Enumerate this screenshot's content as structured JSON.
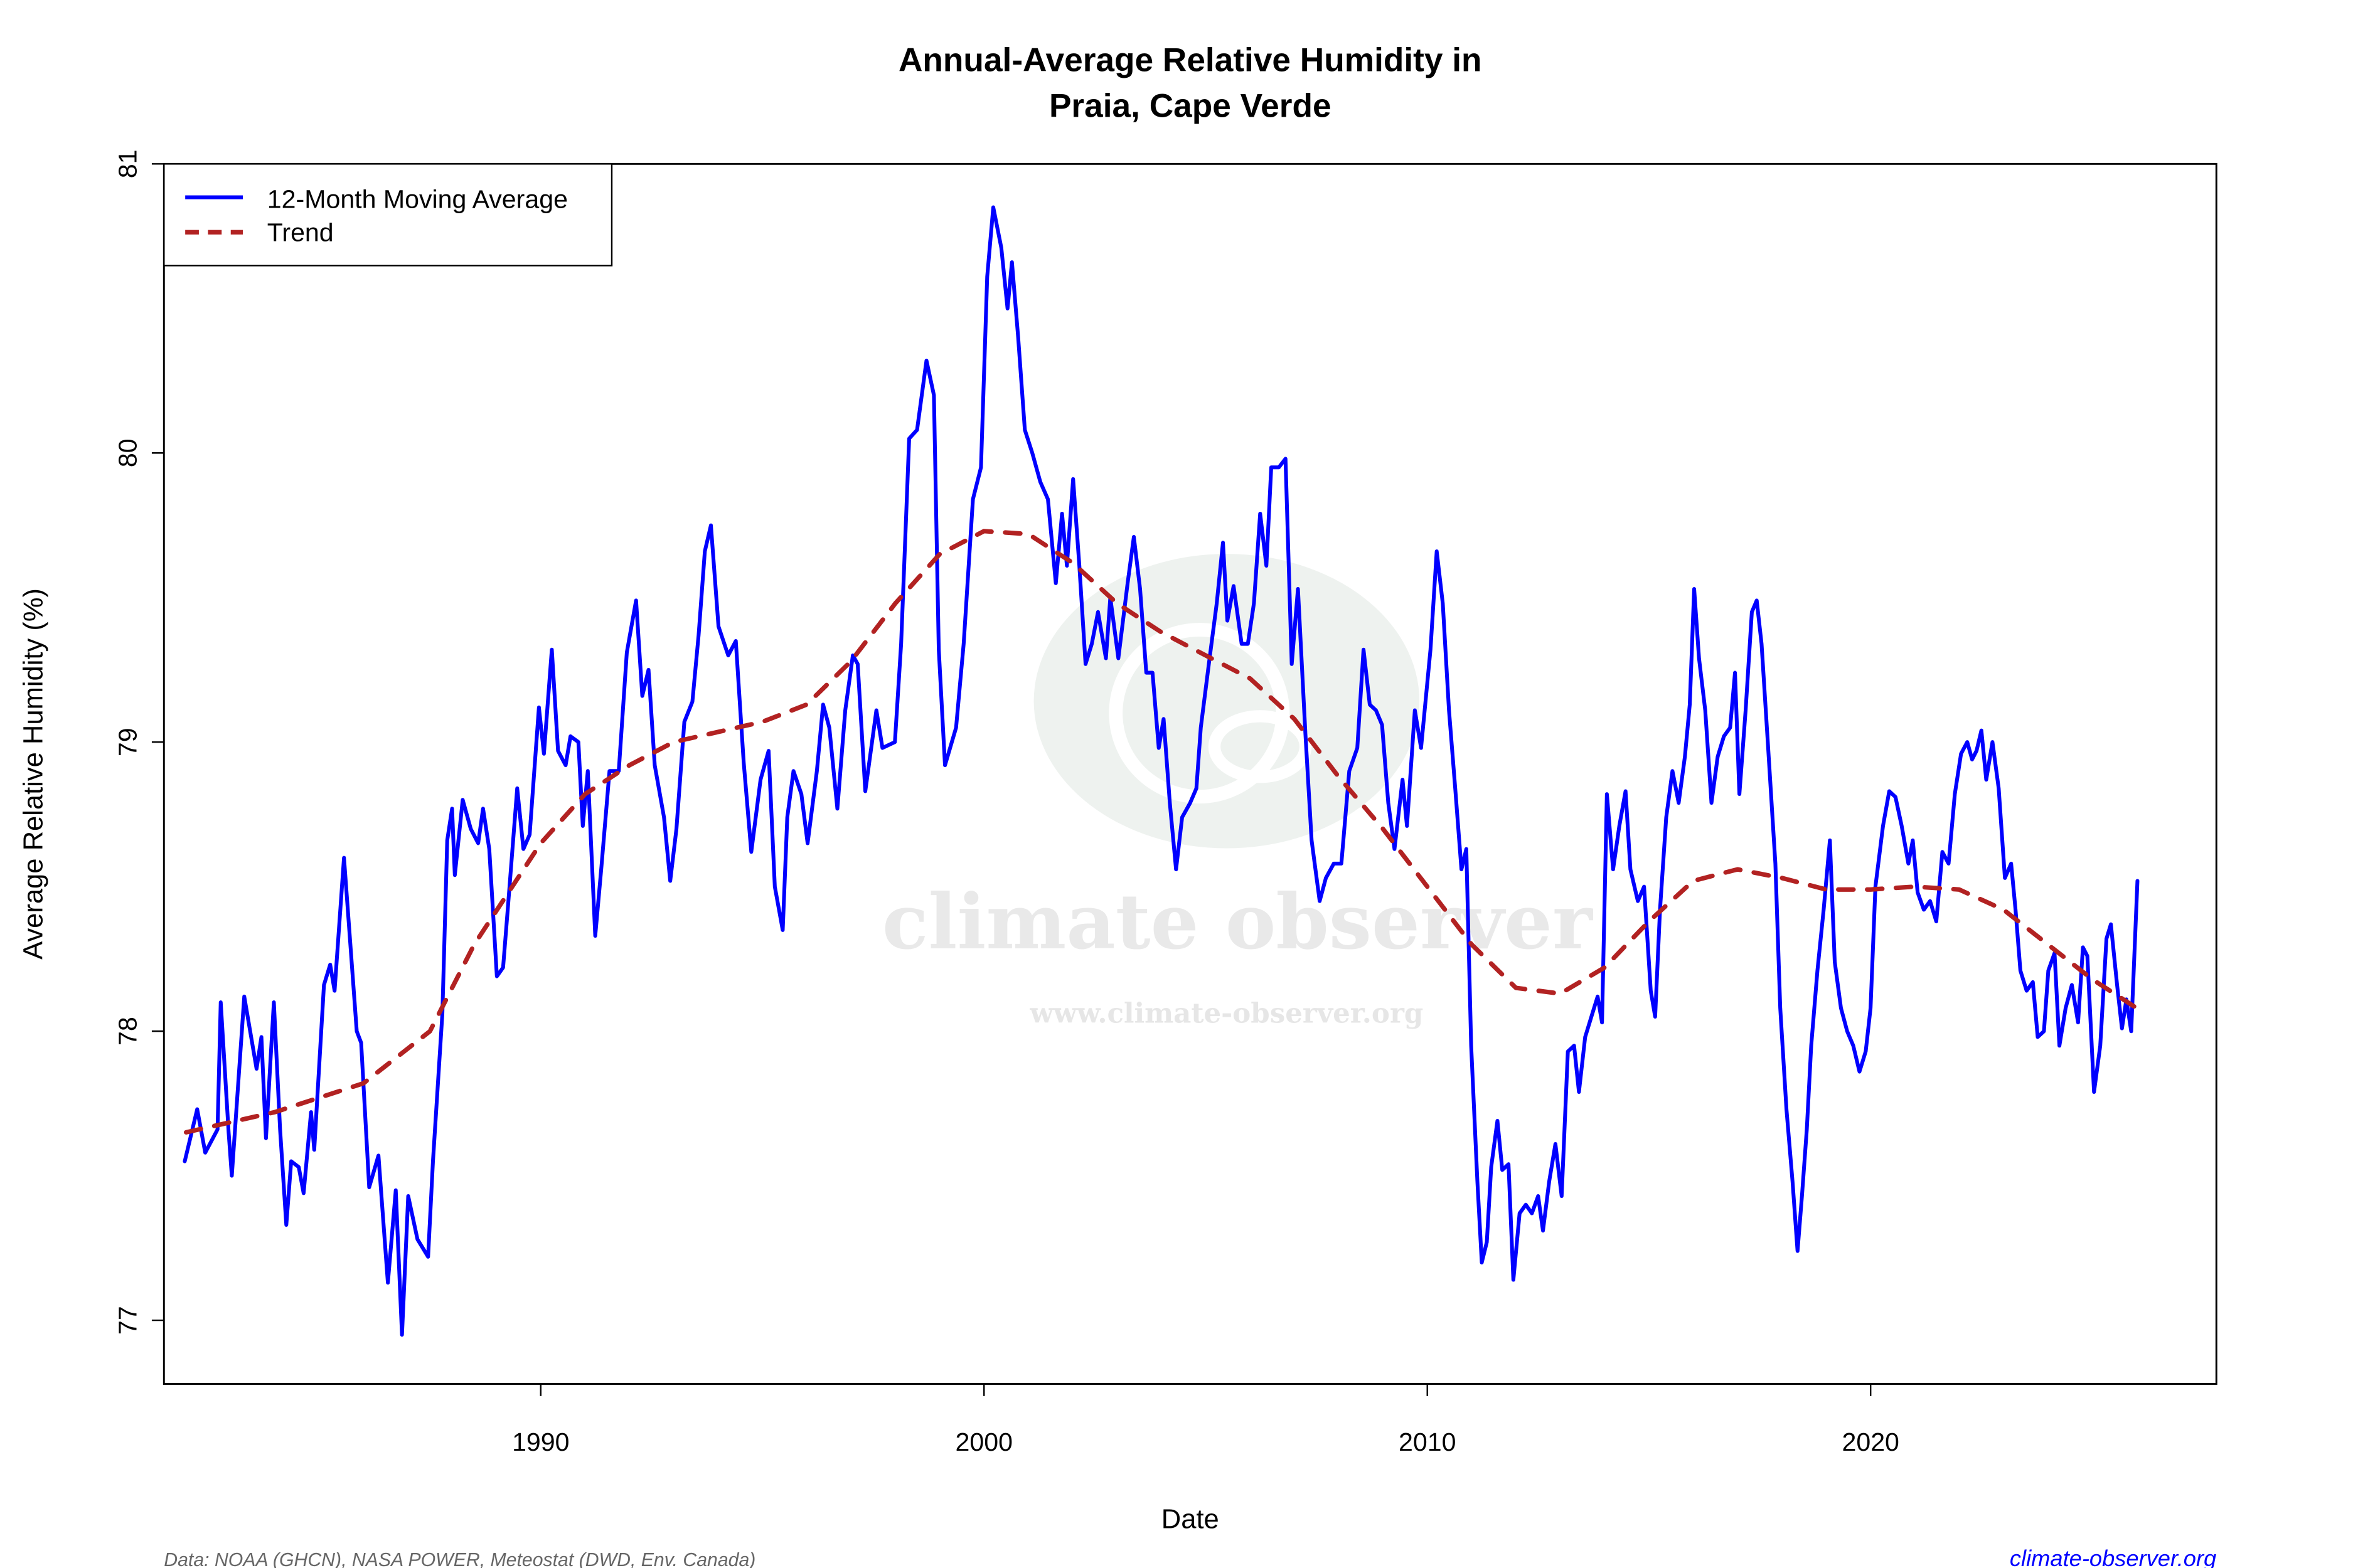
{
  "chart_data": {
    "type": "line",
    "title": [
      "Annual-Average Relative Humidity in",
      "Praia, Cape Verde"
    ],
    "xlabel": "Date",
    "ylabel": "Average Relative Humidity (%)",
    "xlim": [
      1981.5,
      2027.8
    ],
    "ylim": [
      76.78,
      81.0
    ],
    "xticks": [
      1990,
      2000,
      2010,
      2020
    ],
    "yticks": [
      77,
      78,
      79,
      80,
      81
    ],
    "grid": false,
    "legend_position": "top-left",
    "series": [
      {
        "name": "12-Month Moving Average",
        "color": "#0000ff",
        "style": "solid",
        "x": [
          1981.97,
          1982.25,
          1982.43,
          1982.71,
          1982.78,
          1982.96,
          1983.03,
          1983.31,
          1983.59,
          1983.7,
          1983.8,
          1983.98,
          1984.12,
          1984.26,
          1984.37,
          1984.54,
          1984.65,
          1984.82,
          1984.89,
          1985.11,
          1985.25,
          1985.35,
          1985.56,
          1985.85,
          1985.95,
          1986.13,
          1986.34,
          1986.55,
          1986.73,
          1986.87,
          1987.01,
          1987.22,
          1987.46,
          1987.57,
          1987.78,
          1987.89,
          1988.0,
          1988.06,
          1988.24,
          1988.42,
          1988.59,
          1988.7,
          1988.84,
          1989.01,
          1989.15,
          1989.26,
          1989.47,
          1989.61,
          1989.75,
          1989.96,
          1990.07,
          1990.25,
          1990.39,
          1990.56,
          1990.67,
          1990.85,
          1990.95,
          1991.06,
          1991.23,
          1991.37,
          1991.55,
          1991.76,
          1991.94,
          1992.15,
          1992.29,
          1992.43,
          1992.57,
          1992.78,
          1992.92,
          1993.06,
          1993.24,
          1993.42,
          1993.56,
          1993.7,
          1993.84,
          1994.01,
          1994.23,
          1994.4,
          1994.58,
          1994.75,
          1994.96,
          1995.14,
          1995.28,
          1995.46,
          1995.56,
          1995.7,
          1995.88,
          1996.02,
          1996.23,
          1996.37,
          1996.51,
          1996.69,
          1996.87,
          1997.04,
          1997.15,
          1997.32,
          1997.57,
          1997.71,
          1997.99,
          1998.13,
          1998.31,
          1998.49,
          1998.7,
          1998.87,
          1998.98,
          1999.12,
          1999.37,
          1999.54,
          1999.75,
          1999.93,
          2000.07,
          2000.21,
          2000.39,
          2000.53,
          2000.63,
          2000.77,
          2000.92,
          2001.09,
          2001.27,
          2001.44,
          2001.62,
          2001.76,
          2001.87,
          2002.01,
          2002.15,
          2002.29,
          2002.43,
          2002.57,
          2002.75,
          2002.85,
          2003.03,
          2003.24,
          2003.38,
          2003.52,
          2003.66,
          2003.8,
          2003.94,
          2004.05,
          2004.19,
          2004.33,
          2004.47,
          2004.65,
          2004.79,
          2004.89,
          2005.07,
          2005.25,
          2005.39,
          2005.49,
          2005.63,
          2005.81,
          2005.95,
          2006.09,
          2006.23,
          2006.37,
          2006.48,
          2006.65,
          2006.8,
          2006.94,
          2007.08,
          2007.25,
          2007.39,
          2007.57,
          2007.71,
          2007.89,
          2008.06,
          2008.24,
          2008.42,
          2008.56,
          2008.7,
          2008.84,
          2008.98,
          2009.12,
          2009.26,
          2009.44,
          2009.54,
          2009.72,
          2009.86,
          2010.07,
          2010.21,
          2010.35,
          2010.49,
          2010.63,
          2010.77,
          2010.88,
          2010.99,
          2011.13,
          2011.23,
          2011.34,
          2011.44,
          2011.58,
          2011.69,
          2011.83,
          2011.94,
          2012.08,
          2012.22,
          2012.36,
          2012.5,
          2012.61,
          2012.75,
          2012.89,
          2013.03,
          2013.17,
          2013.31,
          2013.42,
          2013.56,
          2013.7,
          2013.84,
          2013.94,
          2014.05,
          2014.19,
          2014.33,
          2014.47,
          2014.58,
          2014.75,
          2014.89,
          2015.04,
          2015.14,
          2015.25,
          2015.39,
          2015.53,
          2015.67,
          2015.81,
          2015.92,
          2016.02,
          2016.13,
          2016.27,
          2016.41,
          2016.55,
          2016.69,
          2016.83,
          2016.94,
          2017.04,
          2017.18,
          2017.32,
          2017.43,
          2017.54,
          2017.68,
          2017.85,
          2017.96,
          2018.1,
          2018.24,
          2018.35,
          2018.45,
          2018.56,
          2018.66,
          2018.8,
          2018.94,
          2019.08,
          2019.19,
          2019.33,
          2019.47,
          2019.61,
          2019.75,
          2019.89,
          2020.0,
          2020.11,
          2020.28,
          2020.42,
          2020.56,
          2020.7,
          2020.85,
          2020.95,
          2021.06,
          2021.2,
          2021.34,
          2021.48,
          2021.62,
          2021.76,
          2021.9,
          2022.04,
          2022.18,
          2022.29,
          2022.39,
          2022.5,
          2022.61,
          2022.75,
          2022.89,
          2023.03,
          2023.17,
          2023.27,
          2023.38,
          2023.52,
          2023.66,
          2023.77,
          2023.91,
          2024.01,
          2024.15,
          2024.26,
          2024.4,
          2024.54,
          2024.68,
          2024.79,
          2024.89,
          2025.04,
          2025.18,
          2025.32,
          2025.42,
          2025.56,
          2025.67,
          2025.77,
          2025.88,
          2026.02
        ],
        "y": [
          77.55,
          77.73,
          77.58,
          77.66,
          78.1,
          77.65,
          77.5,
          78.12,
          77.87,
          77.98,
          77.63,
          78.1,
          77.66,
          77.33,
          77.55,
          77.53,
          77.44,
          77.72,
          77.59,
          78.16,
          78.23,
          78.14,
          78.6,
          78.0,
          77.96,
          77.46,
          77.57,
          77.13,
          77.45,
          76.95,
          77.43,
          77.28,
          77.22,
          77.55,
          78.06,
          78.66,
          78.77,
          78.54,
          78.8,
          78.7,
          78.65,
          78.77,
          78.63,
          78.19,
          78.22,
          78.43,
          78.84,
          78.63,
          78.68,
          79.12,
          78.96,
          79.32,
          78.97,
          78.92,
          79.02,
          79.0,
          78.71,
          78.9,
          78.33,
          78.57,
          78.9,
          78.9,
          79.31,
          79.49,
          79.16,
          79.25,
          78.92,
          78.74,
          78.52,
          78.7,
          79.07,
          79.14,
          79.37,
          79.66,
          79.75,
          79.4,
          79.3,
          79.35,
          78.93,
          78.62,
          78.87,
          78.97,
          78.5,
          78.35,
          78.74,
          78.9,
          78.82,
          78.65,
          78.9,
          79.13,
          79.05,
          78.77,
          79.11,
          79.3,
          79.27,
          78.83,
          79.11,
          78.98,
          79.0,
          79.34,
          80.05,
          80.08,
          80.32,
          80.2,
          79.32,
          78.92,
          79.05,
          79.34,
          79.84,
          79.95,
          80.61,
          80.85,
          80.71,
          80.5,
          80.66,
          80.4,
          80.08,
          80.0,
          79.9,
          79.84,
          79.55,
          79.79,
          79.61,
          79.91,
          79.61,
          79.27,
          79.34,
          79.45,
          79.29,
          79.5,
          79.29,
          79.55,
          79.71,
          79.53,
          79.24,
          79.24,
          78.98,
          79.08,
          78.79,
          78.56,
          78.74,
          78.79,
          78.84,
          79.05,
          79.27,
          79.48,
          79.69,
          79.42,
          79.54,
          79.34,
          79.34,
          79.48,
          79.79,
          79.61,
          79.95,
          79.95,
          79.98,
          79.27,
          79.53,
          79.03,
          78.66,
          78.45,
          78.53,
          78.58,
          78.58,
          78.9,
          78.98,
          79.32,
          79.13,
          79.11,
          79.06,
          78.79,
          78.63,
          78.87,
          78.71,
          79.11,
          78.98,
          79.32,
          79.66,
          79.48,
          79.11,
          78.84,
          78.56,
          78.63,
          77.95,
          77.48,
          77.2,
          77.27,
          77.53,
          77.69,
          77.52,
          77.54,
          77.14,
          77.37,
          77.4,
          77.37,
          77.43,
          77.31,
          77.48,
          77.61,
          77.43,
          77.93,
          77.95,
          77.79,
          77.98,
          78.05,
          78.12,
          78.03,
          78.82,
          78.56,
          78.71,
          78.83,
          78.56,
          78.45,
          78.5,
          78.14,
          78.05,
          78.42,
          78.74,
          78.9,
          78.79,
          78.95,
          79.13,
          79.53,
          79.29,
          79.11,
          78.79,
          78.95,
          79.02,
          79.05,
          79.24,
          78.82,
          79.11,
          79.45,
          79.49,
          79.34,
          79.0,
          78.58,
          78.08,
          77.73,
          77.48,
          77.24,
          77.43,
          77.66,
          77.95,
          78.21,
          78.42,
          78.66,
          78.24,
          78.08,
          78.0,
          77.95,
          77.86,
          77.93,
          78.08,
          78.5,
          78.71,
          78.83,
          78.81,
          78.71,
          78.58,
          78.66,
          78.48,
          78.42,
          78.45,
          78.38,
          78.62,
          78.58,
          78.82,
          78.96,
          79.0,
          78.94,
          78.97,
          79.04,
          78.87,
          79.0,
          78.84,
          78.53,
          78.58,
          78.42,
          78.21,
          78.14,
          78.17,
          77.98,
          78.0,
          78.21,
          78.27,
          77.95,
          78.08,
          78.16,
          78.03,
          78.29,
          78.26,
          77.79,
          77.95,
          78.32,
          78.37,
          78.16,
          78.01,
          78.11,
          78.0,
          78.52
        ]
      },
      {
        "name": "Trend",
        "color": "#b22222",
        "style": "dashed",
        "x": [
          1982,
          1984,
          1986,
          1987.5,
          1988.5,
          1990,
          1991,
          1992,
          1993,
          1995,
          1996,
          1997,
          1998,
          1999,
          2000,
          2001,
          2002,
          2003,
          2004,
          2005,
          2006,
          2007,
          2008,
          2009,
          2010,
          2011,
          2012,
          2013,
          2014,
          2015,
          2016,
          2017,
          2018,
          2019,
          2020,
          2021,
          2022,
          2023,
          2024,
          2025,
          2026
        ],
        "y": [
          77.65,
          77.72,
          77.82,
          78.0,
          78.3,
          78.65,
          78.82,
          78.92,
          79.0,
          79.07,
          79.13,
          79.28,
          79.48,
          79.65,
          79.73,
          79.72,
          79.62,
          79.48,
          79.38,
          79.3,
          79.22,
          79.08,
          78.88,
          78.7,
          78.5,
          78.3,
          78.15,
          78.13,
          78.22,
          78.38,
          78.52,
          78.56,
          78.53,
          78.49,
          78.49,
          78.5,
          78.49,
          78.42,
          78.3,
          78.18,
          78.08
        ]
      }
    ]
  },
  "footer": {
    "source": "Data: NOAA (GHCN), NASA POWER, Meteostat (DWD, Env. Canada)",
    "site": "climate-observer.org"
  },
  "watermark": {
    "name": "climate observer",
    "url": "www.climate-observer.org"
  }
}
